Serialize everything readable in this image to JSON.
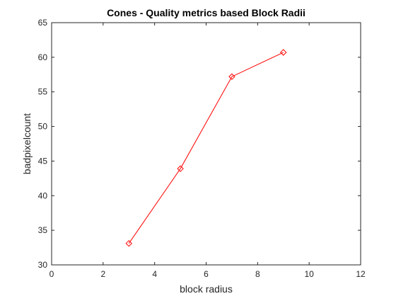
{
  "chart_data": {
    "type": "line",
    "title": "Cones - Quality metrics based Block Radii",
    "xlabel": "block radius",
    "ylabel": "badpixelcount",
    "xlim": [
      0,
      12
    ],
    "ylim": [
      30,
      65
    ],
    "xticks": [
      0,
      2,
      4,
      6,
      8,
      10,
      12
    ],
    "yticks": [
      30,
      35,
      40,
      45,
      50,
      55,
      60,
      65
    ],
    "grid": false,
    "series": [
      {
        "x": [
          3,
          5,
          7,
          9
        ],
        "y": [
          33.1,
          43.9,
          57.2,
          60.7
        ],
        "color": "#ff0000",
        "marker": "diamond"
      }
    ]
  }
}
